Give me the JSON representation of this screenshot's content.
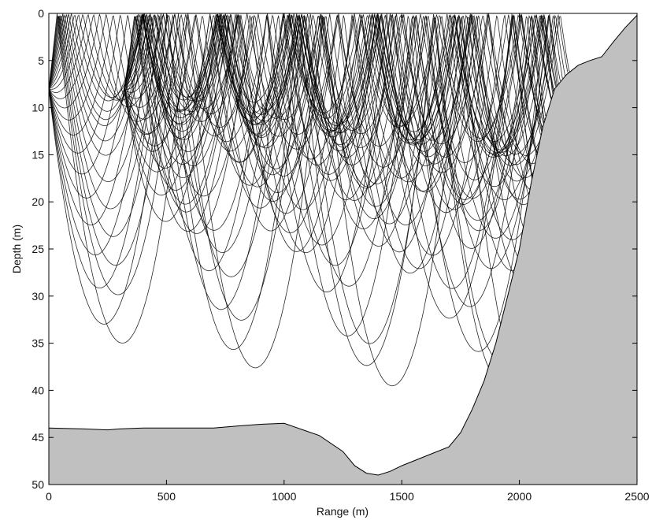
{
  "chart_data": {
    "type": "ray-trace",
    "title": "",
    "xlabel": "Range (m)",
    "ylabel": "Depth (m)",
    "xlim": [
      0,
      2500
    ],
    "ylim": [
      0,
      50
    ],
    "y_inverted": true,
    "xticks": [
      0,
      500,
      1000,
      1500,
      2000,
      2500
    ],
    "yticks": [
      0,
      5,
      10,
      15,
      20,
      25,
      30,
      35,
      40,
      45,
      50
    ],
    "grid": false,
    "colors": {
      "rays": "#000000",
      "seabed": "#c0c0c0",
      "background": "#ffffff",
      "frame": "#000000"
    },
    "sources": [
      {
        "range": 0,
        "depth": 8
      },
      {
        "range": 320,
        "depth": 8
      }
    ],
    "bathymetry": {
      "range": [
        0,
        150,
        250,
        300,
        400,
        500,
        600,
        700,
        800,
        900,
        1000,
        1150,
        1250,
        1300,
        1350,
        1400,
        1450,
        1500,
        1600,
        1700,
        1750,
        1800,
        1850,
        1900,
        1950,
        2000,
        2050,
        2100,
        2150,
        2200,
        2250,
        2300,
        2350,
        2400,
        2450,
        2500
      ],
      "depth": [
        44,
        44.1,
        44.2,
        44.1,
        44,
        44,
        44,
        44,
        43.8,
        43.6,
        43.5,
        44.8,
        46.5,
        48,
        48.8,
        49,
        48.6,
        48,
        47,
        46,
        44.5,
        42,
        39,
        35,
        30,
        25,
        18,
        12,
        8,
        6.5,
        5.5,
        5,
        4.6,
        3,
        1.5,
        0.2
      ]
    },
    "ray_fans": [
      {
        "source": 0,
        "count": 26,
        "grazing_angle_range_deg": [
          -12,
          12
        ]
      },
      {
        "source": 1,
        "count": 20,
        "grazing_angle_range_deg": [
          -9,
          9
        ]
      }
    ]
  }
}
